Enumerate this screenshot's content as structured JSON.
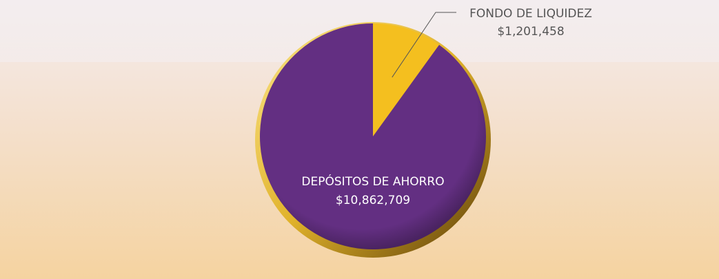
{
  "chart_data": {
    "type": "pie",
    "categories": [
      "FONDO DE LIQUIDEZ",
      "DEPÓSITOS DE AHORRO"
    ],
    "values": [
      1201458,
      10862709
    ],
    "value_labels": [
      "$1,201,458",
      "$10,862,709"
    ],
    "colors": [
      "#f4bf1f",
      "#632f82"
    ]
  }
}
